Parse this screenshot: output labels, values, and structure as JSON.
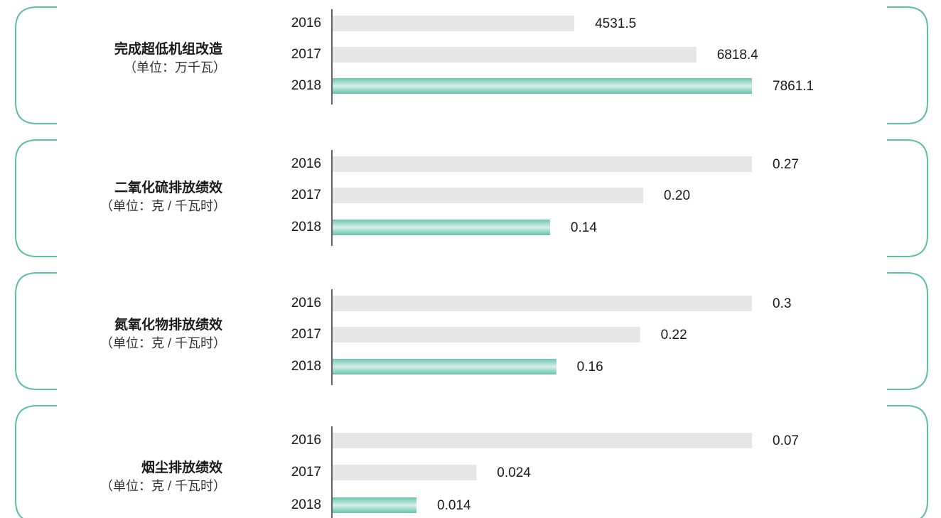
{
  "chart_data": [
    {
      "type": "bar",
      "orientation": "horizontal",
      "title": "完成超低机组改造",
      "subtitle": "（单位：万千瓦）",
      "categories": [
        "2016",
        "2017",
        "2018"
      ],
      "values": [
        4531.5,
        6818.4,
        7861.1
      ],
      "colors": [
        "#e6e6e6",
        "#e6e6e6",
        "#5cbfa8"
      ]
    },
    {
      "type": "bar",
      "orientation": "horizontal",
      "title": "二氧化硫排放绩效",
      "subtitle": "（单位：克 / 千瓦时）",
      "categories": [
        "2016",
        "2017",
        "2018"
      ],
      "values": [
        0.27,
        0.2,
        0.14
      ],
      "value_labels": [
        "0.27",
        "0.20",
        "0.14"
      ],
      "colors": [
        "#e6e6e6",
        "#e6e6e6",
        "#5cbfa8"
      ]
    },
    {
      "type": "bar",
      "orientation": "horizontal",
      "title": "氮氧化物排放绩效",
      "subtitle": "（单位：克 / 千瓦时）",
      "categories": [
        "2016",
        "2017",
        "2018"
      ],
      "values": [
        0.3,
        0.22,
        0.16
      ],
      "colors": [
        "#e6e6e6",
        "#e6e6e6",
        "#5cbfa8"
      ]
    },
    {
      "type": "bar",
      "orientation": "horizontal",
      "title": "烟尘排放绩效",
      "subtitle": "（单位：克 / 千瓦时）",
      "categories": [
        "2016",
        "2017",
        "2018"
      ],
      "values": [
        0.07,
        0.024,
        0.014
      ],
      "colors": [
        "#e6e6e6",
        "#e6e6e6",
        "#5cbfa8"
      ]
    }
  ]
}
